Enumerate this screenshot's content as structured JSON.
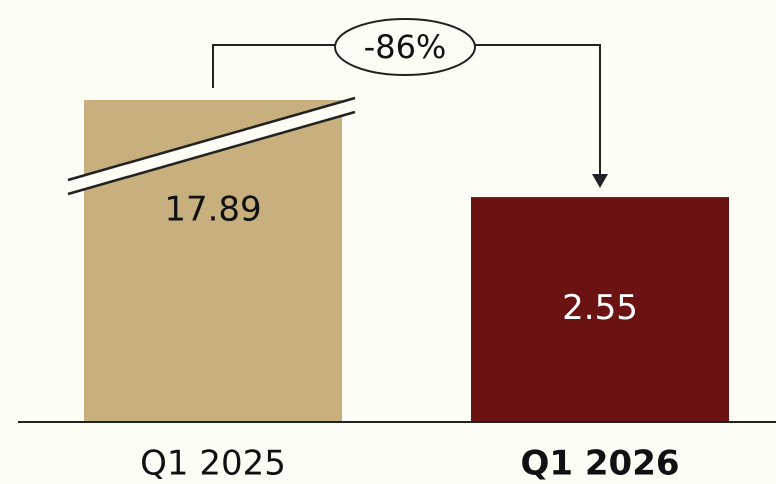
{
  "chart_data": {
    "type": "bar",
    "categories": [
      "Q1 2025",
      "Q1 2026"
    ],
    "values": [
      17.89,
      2.55
    ],
    "colors": [
      "#c8b07e",
      "#6b1212"
    ],
    "annotation": "-86%"
  }
}
